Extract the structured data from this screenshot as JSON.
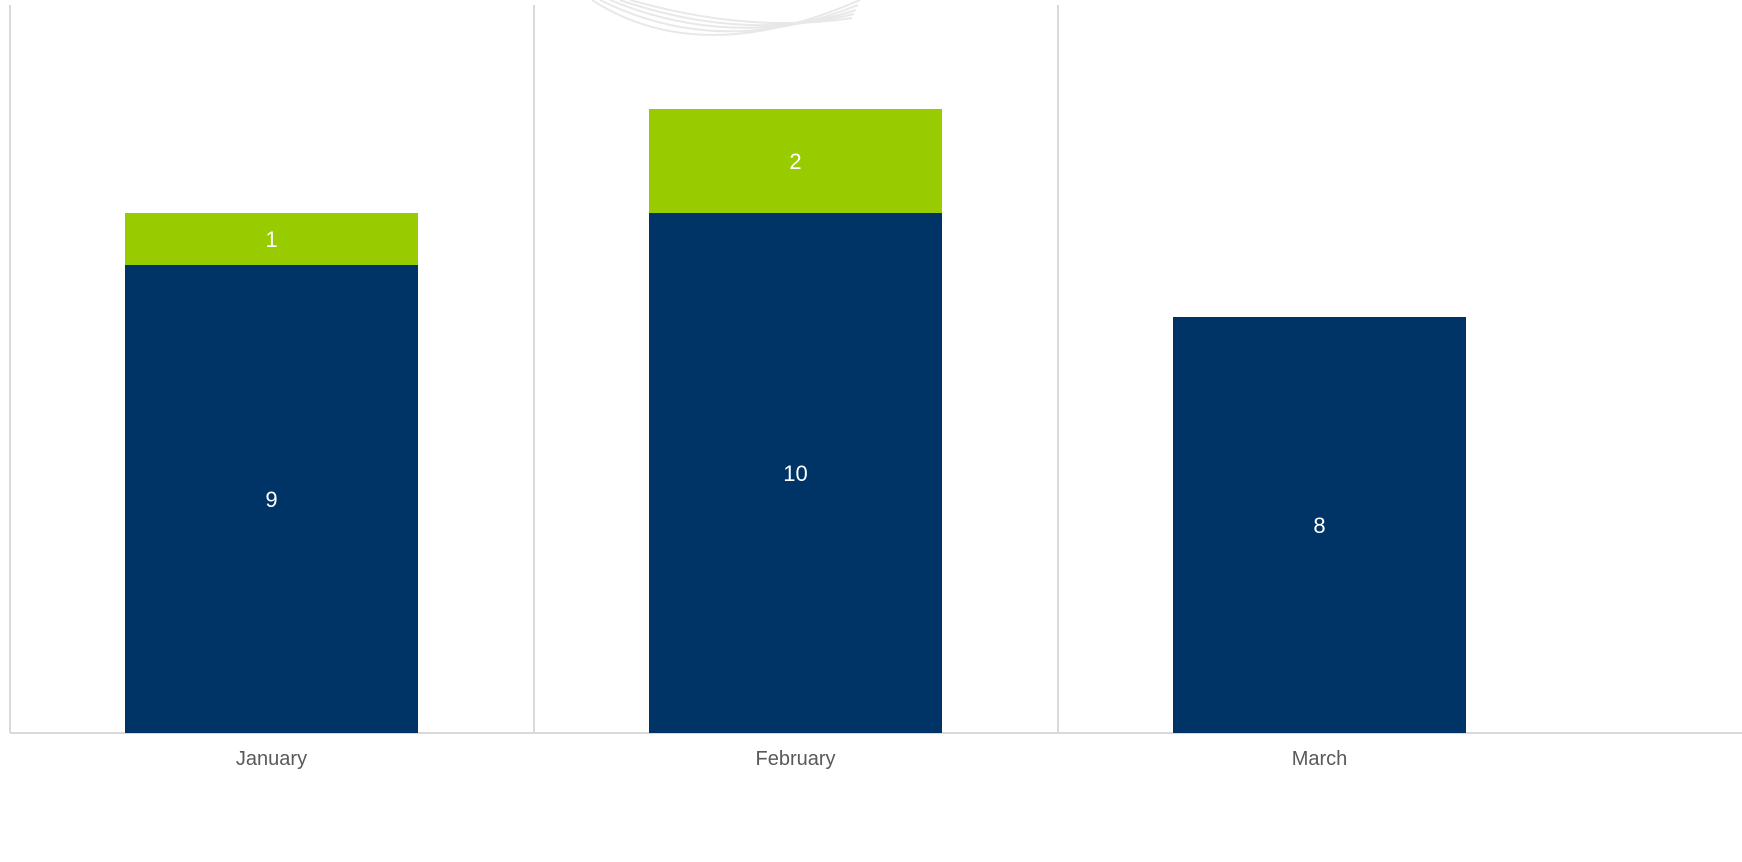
{
  "chart_data": {
    "type": "bar",
    "stacked": true,
    "categories": [
      "January",
      "February",
      "March"
    ],
    "series": [
      {
        "values": [
          9,
          10,
          8
        ],
        "color": "#003366",
        "label_color": "#ffffff"
      },
      {
        "values": [
          1,
          2,
          0
        ],
        "color": "#99cc00",
        "label_color": "#ffffff"
      }
    ],
    "ylim": [
      0,
      14
    ],
    "grid": "vertical-category-separators",
    "legend": "none",
    "xlabel": "",
    "ylabel": "",
    "title": ""
  },
  "colors": {
    "grid": "#d9d9d9",
    "tick_label": "#595959",
    "watermark": "#e8e8e8",
    "background": "#ffffff"
  },
  "watermark": {
    "icon": "arc-lines-decoration"
  }
}
